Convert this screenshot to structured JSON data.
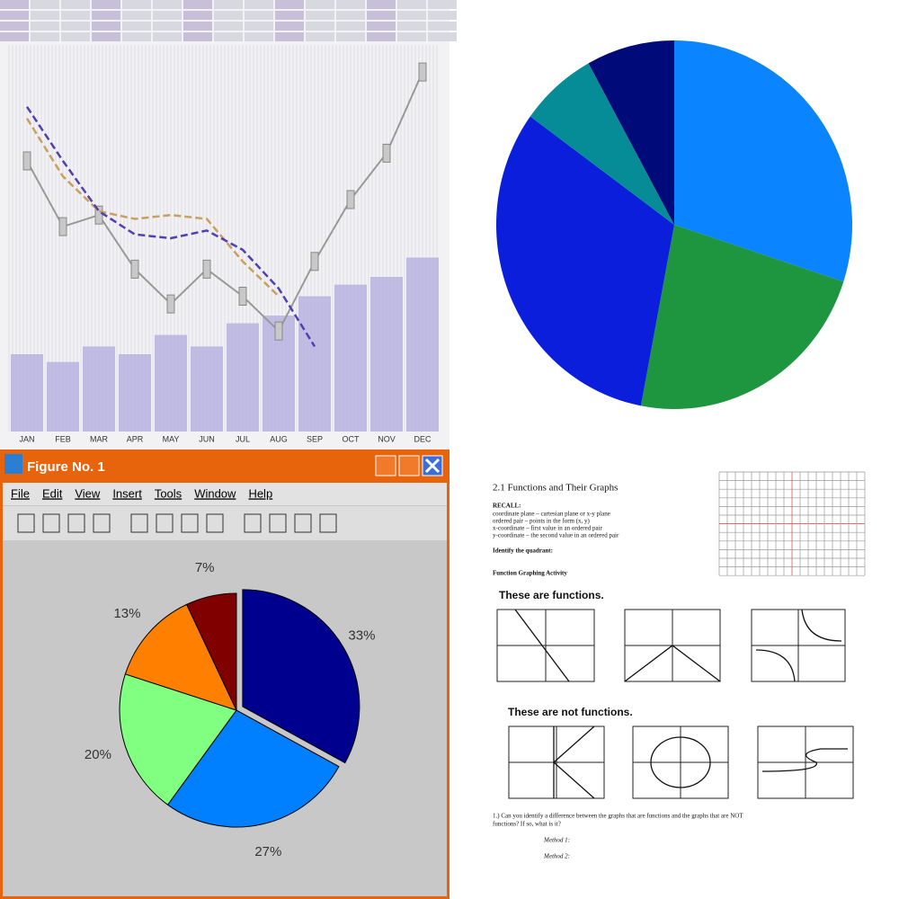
{
  "chart_data": [
    {
      "type": "stock",
      "categories": [
        "JAN",
        "FEB",
        "MAR",
        "APR",
        "MAY",
        "JUN",
        "JUL",
        "AUG",
        "SEP",
        "OCT",
        "NOV",
        "DEC"
      ],
      "ylim": [
        0,
        100
      ],
      "series": [
        {
          "color": "#999999",
          "values": [
            70,
            53,
            56,
            42,
            33,
            42,
            35,
            26,
            44,
            60,
            72,
            93
          ]
        },
        {
          "color": "#c8a060",
          "values": [
            81,
            66,
            57,
            55,
            56,
            55,
            44,
            35,
            null,
            null,
            null,
            null
          ]
        },
        {
          "color": "#5040b0",
          "values": [
            84,
            70,
            57,
            51,
            50,
            52,
            47,
            37,
            22,
            null,
            null,
            null
          ]
        }
      ],
      "volume": {
        "color": "#b4aee0",
        "values": [
          20,
          18,
          22,
          20,
          25,
          22,
          28,
          30,
          35,
          38,
          40,
          45
        ]
      }
    },
    {
      "type": "pie",
      "values": [
        30,
        23,
        32,
        7,
        8
      ],
      "colors": [
        "#0a84ff",
        "#1e9640",
        "#0a1edc",
        "#068c96",
        "#000a78"
      ]
    },
    {
      "type": "pie",
      "values": [
        33,
        27,
        20,
        13,
        7
      ],
      "value_labels": [
        "33%",
        "27%",
        "20%",
        "13%",
        "7%"
      ],
      "colors": [
        "#00008f",
        "#0080ff",
        "#80ff80",
        "#ff8000",
        "#800000"
      ],
      "explode": [
        true,
        false,
        false,
        false,
        false
      ]
    }
  ],
  "window": {
    "title": "Figure No. 1",
    "menu": [
      "File",
      "Edit",
      "View",
      "Insert",
      "Tools",
      "Window",
      "Help"
    ]
  },
  "document": {
    "heading": "2.1  Functions and Their Graphs",
    "recall": "RECALL:",
    "definitions": [
      "coordinate plane – cartesian plane or x-y plane",
      "ordered pair – points in the form (x, y)",
      "x-coordinate – first value in an ordered pair",
      "y-coordinate – the second value in an ordered pair"
    ],
    "quadrant": "Identify the quadrant:",
    "activity": "Function Graphing Activity",
    "functions": "These are functions.",
    "not_functions": "These are not functions.",
    "question": [
      "1.) Can you identify a difference between the graphs that are functions and the graphs that are NOT",
      "functions? If so, what is it?"
    ],
    "methods": [
      "Method 1:",
      "Method 2:"
    ]
  }
}
